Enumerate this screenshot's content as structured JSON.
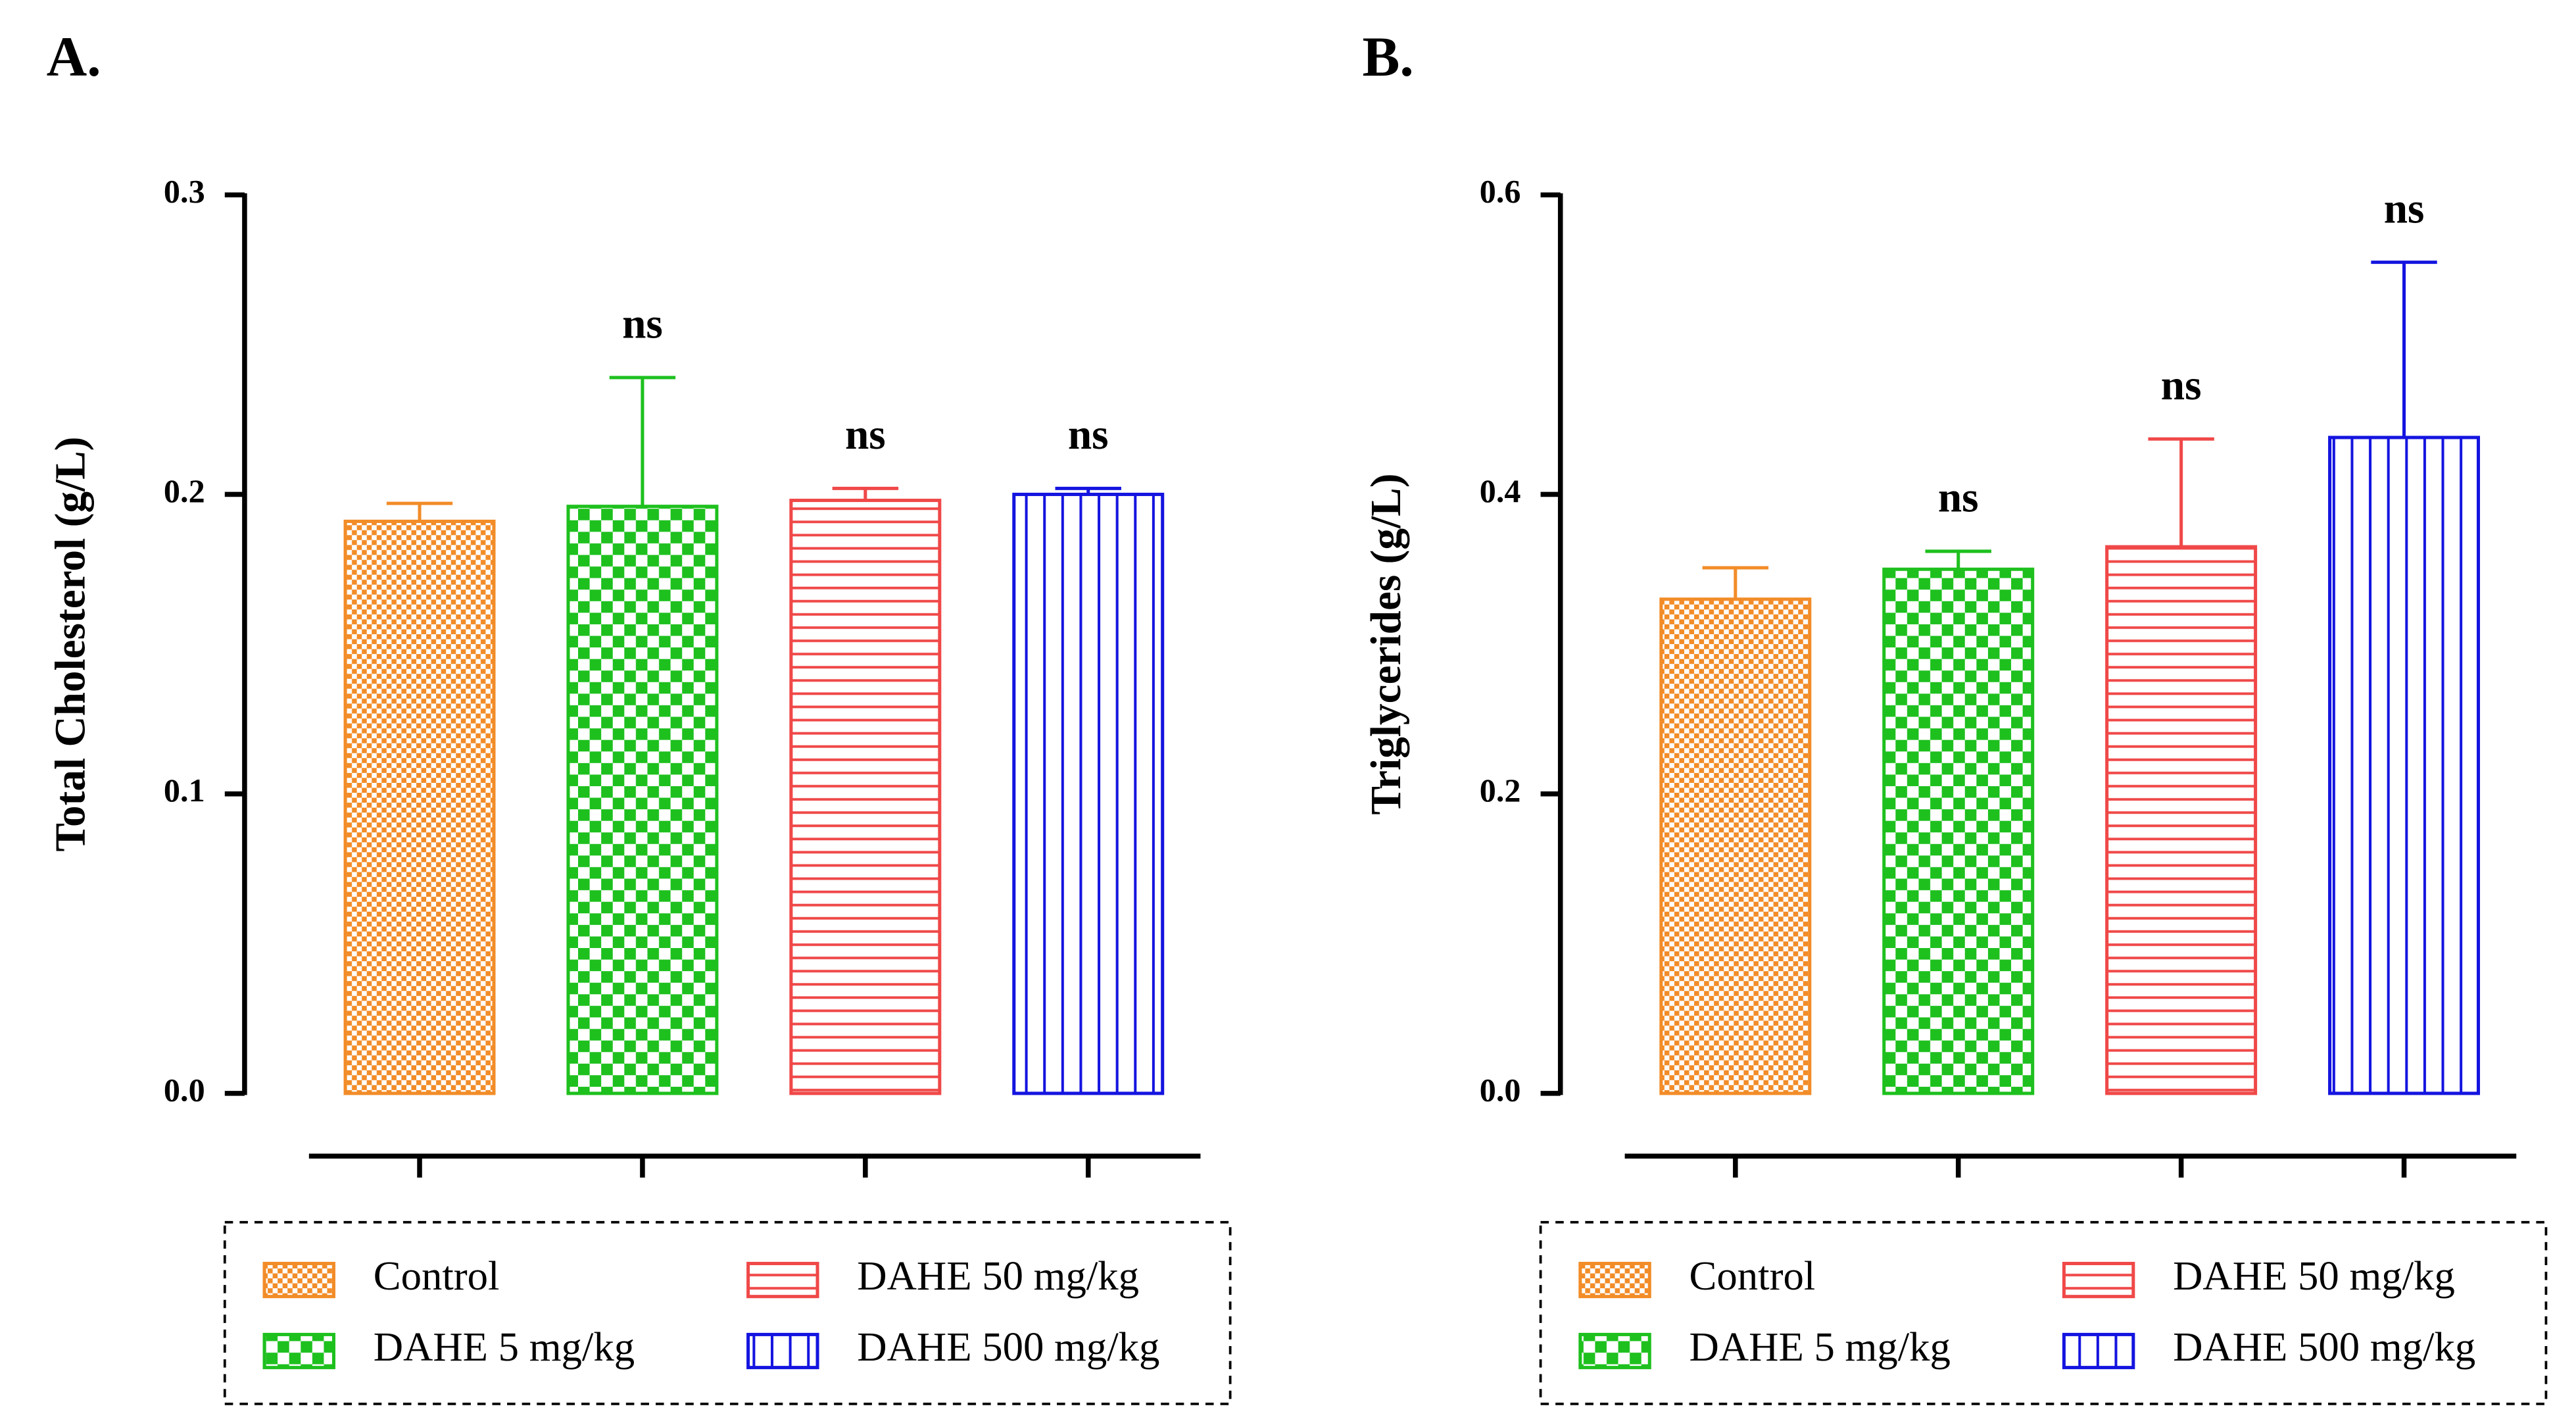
{
  "chart_data": [
    {
      "type": "bar",
      "panel": "A.",
      "ylabel": "Total Cholesterol (g/L)",
      "categories": [
        "Control",
        "DAHE 5 mg/kg",
        "DAHE 50 mg/kg",
        "DAHE 500 mg/kg"
      ],
      "values": [
        0.191,
        0.196,
        0.198,
        0.2
      ],
      "errors": [
        0.006,
        0.043,
        0.004,
        0.002
      ],
      "annotations": [
        null,
        "ns",
        "ns",
        "ns"
      ],
      "colors": [
        "#f28c28",
        "#1ec01e",
        "#f04848",
        "#1414e0"
      ],
      "patterns": [
        "fine-check",
        "check",
        "hlines",
        "vlines"
      ],
      "ylim": [
        0,
        0.3
      ],
      "yticks": [
        {
          "value": 0,
          "label": "0.0"
        },
        0.1,
        0.2,
        0.3
      ]
    },
    {
      "type": "bar",
      "panel": "B.",
      "ylabel": "Triglycerides (g/L)",
      "categories": [
        "Control",
        "DAHE 5 mg/kg",
        "DAHE 50 mg/kg",
        "DAHE 500 mg/kg"
      ],
      "values": [
        0.33,
        0.35,
        0.365,
        0.438
      ],
      "errors": [
        0.021,
        0.012,
        0.072,
        0.117
      ],
      "annotations": [
        null,
        "ns",
        "ns",
        "ns"
      ],
      "colors": [
        "#f28c28",
        "#1ec01e",
        "#f04848",
        "#1414e0"
      ],
      "patterns": [
        "fine-check",
        "check",
        "hlines",
        "vlines"
      ],
      "ylim": [
        0,
        0.6
      ],
      "yticks": [
        {
          "value": 0,
          "label": "0.0"
        },
        0.2,
        0.4,
        0.6
      ]
    }
  ]
}
